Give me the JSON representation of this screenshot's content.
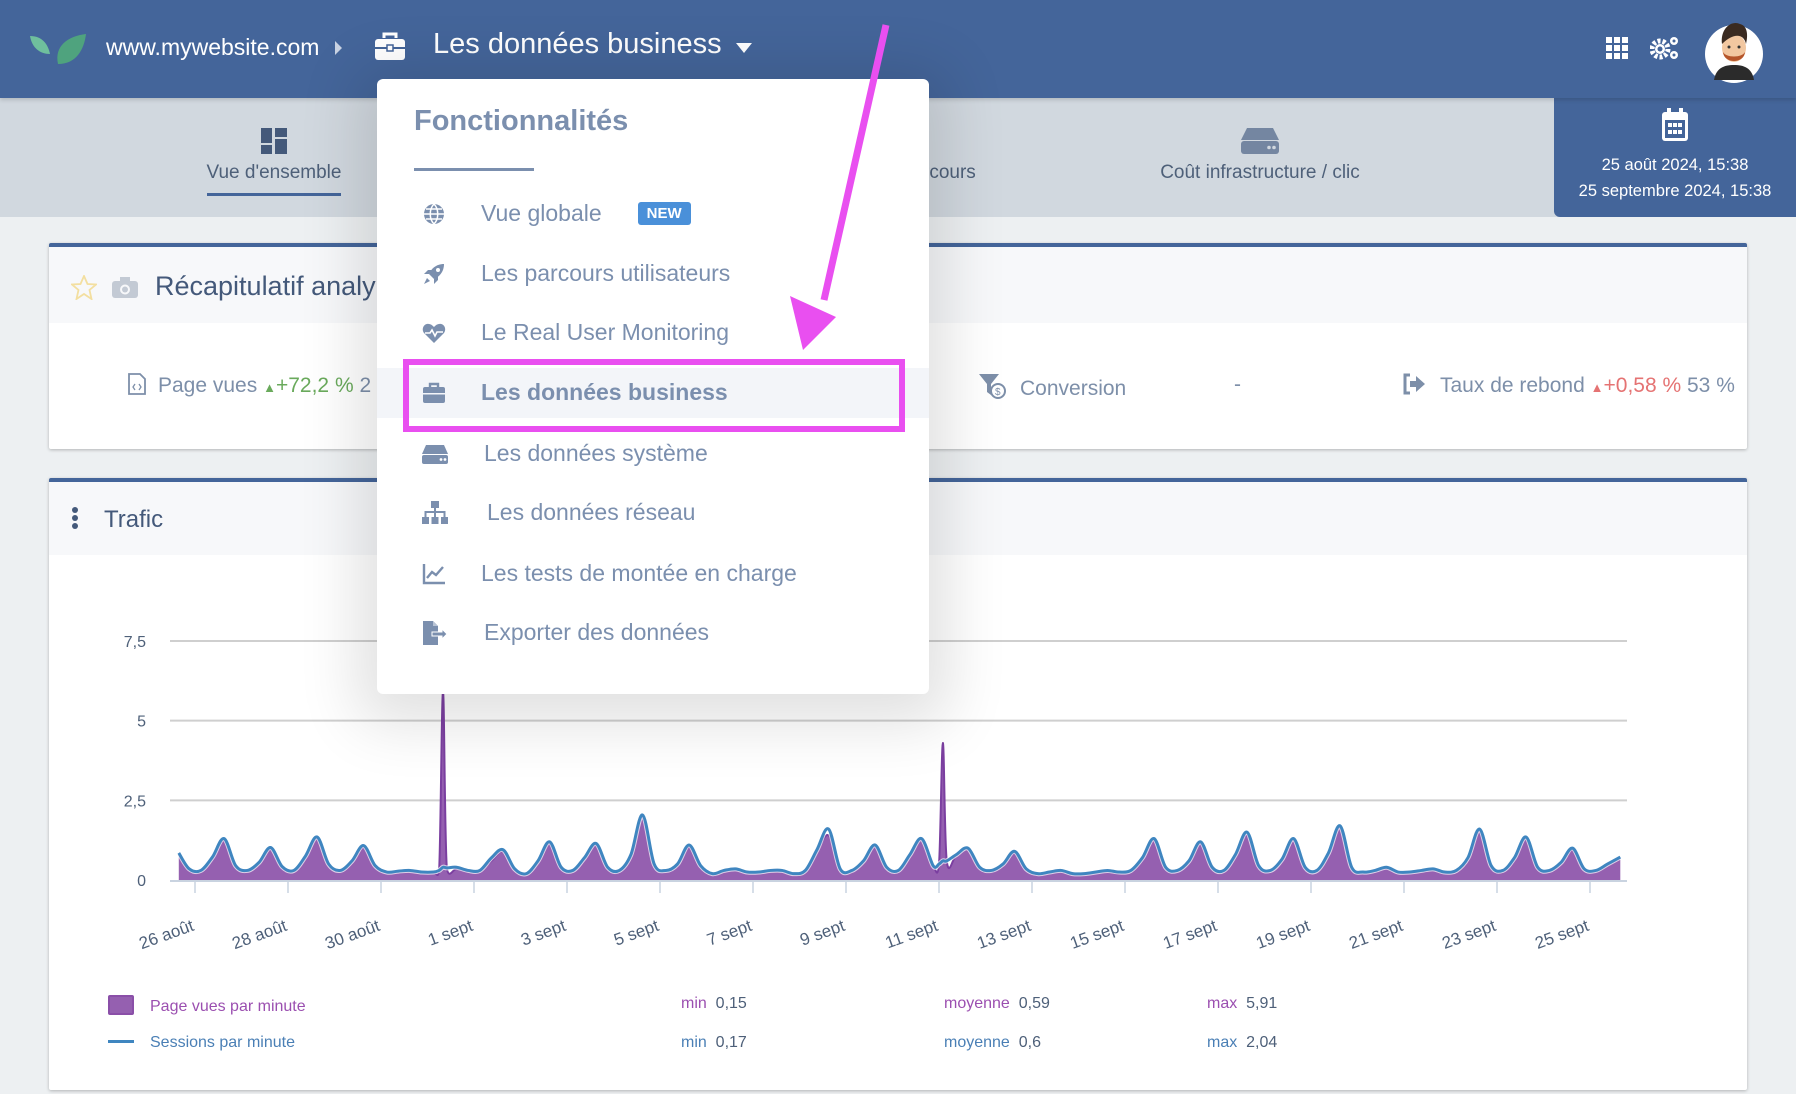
{
  "header": {
    "site": "www.mywebsite.com",
    "current_section": "Les données business",
    "icons": [
      "leaf-logo",
      "chevron-right-icon",
      "briefcase-icon",
      "caret-down-icon",
      "apps-grid-icon",
      "settings-gears-icon",
      "user-avatar"
    ]
  },
  "subnav": {
    "tabs": [
      {
        "label": "Vue d'ensemble",
        "icon": "dashboard-icon",
        "active": true
      },
      {
        "label": "rcours",
        "icon": "rocket-icon"
      },
      {
        "label": "Coût infrastructure / clic",
        "icon": "server-icon"
      }
    ],
    "date_range": {
      "start": "25 août 2024, 15:38",
      "end": "25 septembre 2024, 15:38"
    }
  },
  "summary": {
    "title": "Récapitulatif analy",
    "stats": [
      {
        "label": "Page vues",
        "trend": "+72,2 %",
        "trend_dir": "up",
        "value": "2"
      },
      {
        "label": "Conversion",
        "value": "-"
      },
      {
        "label": "Taux de rebond",
        "trend": "+0,58 %",
        "trend_dir": "up",
        "value": "53 %"
      }
    ]
  },
  "traffic": {
    "title": "Trafic",
    "legend": [
      {
        "name": "Page vues par minute",
        "min_label": "min",
        "min": "0,15",
        "avg_label": "moyenne",
        "avg": "0,59",
        "max_label": "max",
        "max": "5,91",
        "color": "#9560b0"
      },
      {
        "name": "Sessions par minute",
        "min_label": "min",
        "min": "0,17",
        "avg_label": "moyenne",
        "avg": "0,6",
        "max_label": "max",
        "max": "2,04",
        "color": "#3f86c0"
      }
    ]
  },
  "dropdown": {
    "title": "Fonctionnalités",
    "items": [
      {
        "label": "Vue globale",
        "icon": "globe-icon",
        "badge": "NEW"
      },
      {
        "label": "Les parcours utilisateurs",
        "icon": "rocket-icon"
      },
      {
        "label": "Le Real User Monitoring",
        "icon": "heartbeat-icon"
      },
      {
        "label": "Les données business",
        "icon": "briefcase-icon",
        "selected": true
      },
      {
        "label": "Les données système",
        "icon": "server-icon"
      },
      {
        "label": "Les données réseau",
        "icon": "sitemap-icon"
      },
      {
        "label": "Les tests de montée en charge",
        "icon": "line-chart-icon"
      },
      {
        "label": "Exporter des données",
        "icon": "file-export-icon"
      }
    ]
  },
  "annotation": {
    "highlight_color": "#e94ff0"
  },
  "chart_data": {
    "type": "area",
    "y_ticks": [
      "0",
      "2,5",
      "5",
      "7,5"
    ],
    "y_tick_values": [
      0,
      2.5,
      5,
      7.5
    ],
    "ylim": [
      0,
      7.5
    ],
    "grid": true,
    "x_ticks": [
      {
        "label": "26 août",
        "date": "2024-08-26"
      },
      {
        "label": "28 août",
        "date": "2024-08-28"
      },
      {
        "label": "30 août",
        "date": "2024-08-30"
      },
      {
        "label": "1 sept",
        "date": "2024-09-01"
      },
      {
        "label": "3 sept",
        "date": "2024-09-03"
      },
      {
        "label": "5 sept",
        "date": "2024-09-05"
      },
      {
        "label": "7 sept",
        "date": "2024-09-07"
      },
      {
        "label": "9 sept",
        "date": "2024-09-09"
      },
      {
        "label": "11 sept",
        "date": "2024-09-11"
      },
      {
        "label": "13 sept",
        "date": "2024-09-13"
      },
      {
        "label": "15 sept",
        "date": "2024-09-15"
      },
      {
        "label": "17 sept",
        "date": "2024-09-17"
      },
      {
        "label": "19 sept",
        "date": "2024-09-19"
      },
      {
        "label": "21 sept",
        "date": "2024-09-21"
      },
      {
        "label": "23 sept",
        "date": "2024-09-23"
      },
      {
        "label": "25 sept",
        "date": "2024-09-25"
      }
    ],
    "series_names": [
      "Page vues par minute",
      "Sessions par minute"
    ],
    "points": [
      [
        "2024-08-25T15:38",
        0.8,
        0.85
      ],
      [
        "2024-08-25T21:00",
        0.35,
        0.35
      ],
      [
        "2024-08-26T03:00",
        0.3,
        0.3
      ],
      [
        "2024-08-26T09:00",
        0.7,
        0.72
      ],
      [
        "2024-08-26T15:00",
        1.25,
        1.3
      ],
      [
        "2024-08-26T21:00",
        0.45,
        0.45
      ],
      [
        "2024-08-27T03:00",
        0.3,
        0.3
      ],
      [
        "2024-08-27T09:00",
        0.55,
        0.55
      ],
      [
        "2024-08-27T15:00",
        1.0,
        1.02
      ],
      [
        "2024-08-27T21:00",
        0.4,
        0.42
      ],
      [
        "2024-08-28T03:00",
        0.3,
        0.3
      ],
      [
        "2024-08-28T09:00",
        0.75,
        0.75
      ],
      [
        "2024-08-28T15:00",
        1.3,
        1.35
      ],
      [
        "2024-08-28T21:00",
        0.5,
        0.5
      ],
      [
        "2024-08-29T03:00",
        0.3,
        0.3
      ],
      [
        "2024-08-29T09:00",
        0.6,
        0.6
      ],
      [
        "2024-08-29T15:00",
        1.05,
        1.08
      ],
      [
        "2024-08-29T21:00",
        0.45,
        0.45
      ],
      [
        "2024-08-30T03:00",
        0.25,
        0.25
      ],
      [
        "2024-08-30T09:00",
        0.28,
        0.28
      ],
      [
        "2024-08-30T15:00",
        0.3,
        0.3
      ],
      [
        "2024-08-30T21:00",
        0.25,
        0.25
      ],
      [
        "2024-08-31T03:00",
        0.25,
        0.25
      ],
      [
        "2024-08-31T06:00",
        0.3,
        0.3
      ],
      [
        "2024-08-31T08:00",
        5.91,
        0.4
      ],
      [
        "2024-08-31T10:00",
        0.35,
        0.38
      ],
      [
        "2024-08-31T15:00",
        0.35,
        0.4
      ],
      [
        "2024-08-31T21:00",
        0.3,
        0.3
      ],
      [
        "2024-09-01T03:00",
        0.3,
        0.3
      ],
      [
        "2024-09-01T09:00",
        0.6,
        0.7
      ],
      [
        "2024-09-01T15:00",
        0.9,
        0.95
      ],
      [
        "2024-09-01T21:00",
        0.35,
        0.35
      ],
      [
        "2024-09-02T03:00",
        0.2,
        0.2
      ],
      [
        "2024-09-02T09:00",
        0.6,
        0.6
      ],
      [
        "2024-09-02T15:00",
        1.15,
        1.2
      ],
      [
        "2024-09-02T21:00",
        0.4,
        0.4
      ],
      [
        "2024-09-03T03:00",
        0.3,
        0.3
      ],
      [
        "2024-09-03T09:00",
        0.7,
        0.7
      ],
      [
        "2024-09-03T15:00",
        1.1,
        1.15
      ],
      [
        "2024-09-03T21:00",
        0.4,
        0.4
      ],
      [
        "2024-09-04T03:00",
        0.3,
        0.3
      ],
      [
        "2024-09-04T09:00",
        0.8,
        0.8
      ],
      [
        "2024-09-04T15:00",
        2.0,
        2.04
      ],
      [
        "2024-09-04T21:00",
        0.5,
        0.5
      ],
      [
        "2024-09-05T03:00",
        0.3,
        0.3
      ],
      [
        "2024-09-05T09:00",
        0.5,
        0.5
      ],
      [
        "2024-09-05T15:00",
        1.05,
        1.1
      ],
      [
        "2024-09-05T21:00",
        0.45,
        0.45
      ],
      [
        "2024-09-06T03:00",
        0.2,
        0.2
      ],
      [
        "2024-09-06T09:00",
        0.28,
        0.3
      ],
      [
        "2024-09-06T15:00",
        0.35,
        0.35
      ],
      [
        "2024-09-06T21:00",
        0.25,
        0.25
      ],
      [
        "2024-09-07T03:00",
        0.25,
        0.25
      ],
      [
        "2024-09-07T09:00",
        0.3,
        0.3
      ],
      [
        "2024-09-07T15:00",
        0.3,
        0.3
      ],
      [
        "2024-09-07T21:00",
        0.2,
        0.2
      ],
      [
        "2024-09-08T03:00",
        0.3,
        0.3
      ],
      [
        "2024-09-08T09:00",
        0.9,
        0.95
      ],
      [
        "2024-09-08T15:00",
        1.4,
        1.6
      ],
      [
        "2024-09-08T21:00",
        0.35,
        0.35
      ],
      [
        "2024-09-09T03:00",
        0.3,
        0.3
      ],
      [
        "2024-09-09T09:00",
        0.6,
        0.6
      ],
      [
        "2024-09-09T15:00",
        1.05,
        1.1
      ],
      [
        "2024-09-09T21:00",
        0.4,
        0.4
      ],
      [
        "2024-09-10T03:00",
        0.3,
        0.3
      ],
      [
        "2024-09-10T09:00",
        0.8,
        0.8
      ],
      [
        "2024-09-10T15:00",
        1.25,
        1.3
      ],
      [
        "2024-09-10T21:00",
        0.45,
        0.45
      ],
      [
        "2024-09-11T00:00",
        0.5,
        0.5
      ],
      [
        "2024-09-11T02:00",
        4.3,
        0.6
      ],
      [
        "2024-09-11T04:00",
        0.6,
        0.6
      ],
      [
        "2024-09-11T09:00",
        0.8,
        0.8
      ],
      [
        "2024-09-11T15:00",
        1.0,
        1.0
      ],
      [
        "2024-09-11T21:00",
        0.4,
        0.4
      ],
      [
        "2024-09-12T03:00",
        0.3,
        0.3
      ],
      [
        "2024-09-12T09:00",
        0.5,
        0.5
      ],
      [
        "2024-09-12T15:00",
        0.85,
        0.9
      ],
      [
        "2024-09-12T21:00",
        0.35,
        0.35
      ],
      [
        "2024-09-13T03:00",
        0.2,
        0.2
      ],
      [
        "2024-09-13T09:00",
        0.25,
        0.25
      ],
      [
        "2024-09-13T15:00",
        0.3,
        0.3
      ],
      [
        "2024-09-13T21:00",
        0.2,
        0.2
      ],
      [
        "2024-09-14T03:00",
        0.2,
        0.2
      ],
      [
        "2024-09-14T09:00",
        0.25,
        0.25
      ],
      [
        "2024-09-14T15:00",
        0.3,
        0.3
      ],
      [
        "2024-09-14T21:00",
        0.25,
        0.25
      ],
      [
        "2024-09-15T03:00",
        0.3,
        0.3
      ],
      [
        "2024-09-15T09:00",
        0.7,
        0.7
      ],
      [
        "2024-09-15T15:00",
        1.25,
        1.3
      ],
      [
        "2024-09-15T21:00",
        0.4,
        0.4
      ],
      [
        "2024-09-16T03:00",
        0.3,
        0.3
      ],
      [
        "2024-09-16T09:00",
        0.6,
        0.6
      ],
      [
        "2024-09-16T15:00",
        1.15,
        1.2
      ],
      [
        "2024-09-16T21:00",
        0.4,
        0.4
      ],
      [
        "2024-09-17T03:00",
        0.3,
        0.3
      ],
      [
        "2024-09-17T09:00",
        0.8,
        0.8
      ],
      [
        "2024-09-17T15:00",
        1.4,
        1.5
      ],
      [
        "2024-09-17T21:00",
        0.45,
        0.45
      ],
      [
        "2024-09-18T03:00",
        0.3,
        0.3
      ],
      [
        "2024-09-18T09:00",
        0.65,
        0.65
      ],
      [
        "2024-09-18T15:00",
        1.25,
        1.3
      ],
      [
        "2024-09-18T21:00",
        0.4,
        0.4
      ],
      [
        "2024-09-19T03:00",
        0.3,
        0.3
      ],
      [
        "2024-09-19T09:00",
        0.8,
        0.85
      ],
      [
        "2024-09-19T15:00",
        1.65,
        1.7
      ],
      [
        "2024-09-19T21:00",
        0.4,
        0.4
      ],
      [
        "2024-09-20T03:00",
        0.25,
        0.25
      ],
      [
        "2024-09-20T09:00",
        0.3,
        0.3
      ],
      [
        "2024-09-20T15:00",
        0.4,
        0.4
      ],
      [
        "2024-09-20T21:00",
        0.25,
        0.25
      ],
      [
        "2024-09-21T03:00",
        0.25,
        0.25
      ],
      [
        "2024-09-21T09:00",
        0.3,
        0.3
      ],
      [
        "2024-09-21T15:00",
        0.35,
        0.35
      ],
      [
        "2024-09-21T21:00",
        0.25,
        0.25
      ],
      [
        "2024-09-22T03:00",
        0.3,
        0.3
      ],
      [
        "2024-09-22T09:00",
        0.7,
        0.7
      ],
      [
        "2024-09-22T15:00",
        1.55,
        1.6
      ],
      [
        "2024-09-22T21:00",
        0.45,
        0.45
      ],
      [
        "2024-09-23T03:00",
        0.3,
        0.3
      ],
      [
        "2024-09-23T09:00",
        0.7,
        0.7
      ],
      [
        "2024-09-23T15:00",
        1.3,
        1.35
      ],
      [
        "2024-09-23T21:00",
        0.4,
        0.4
      ],
      [
        "2024-09-24T03:00",
        0.3,
        0.3
      ],
      [
        "2024-09-24T09:00",
        0.55,
        0.55
      ],
      [
        "2024-09-24T15:00",
        0.95,
        1.0
      ],
      [
        "2024-09-24T21:00",
        0.35,
        0.35
      ],
      [
        "2024-09-25T03:00",
        0.3,
        0.3
      ],
      [
        "2024-09-25T09:00",
        0.5,
        0.5
      ],
      [
        "2024-09-25T15:38",
        0.7,
        0.72
      ]
    ]
  }
}
